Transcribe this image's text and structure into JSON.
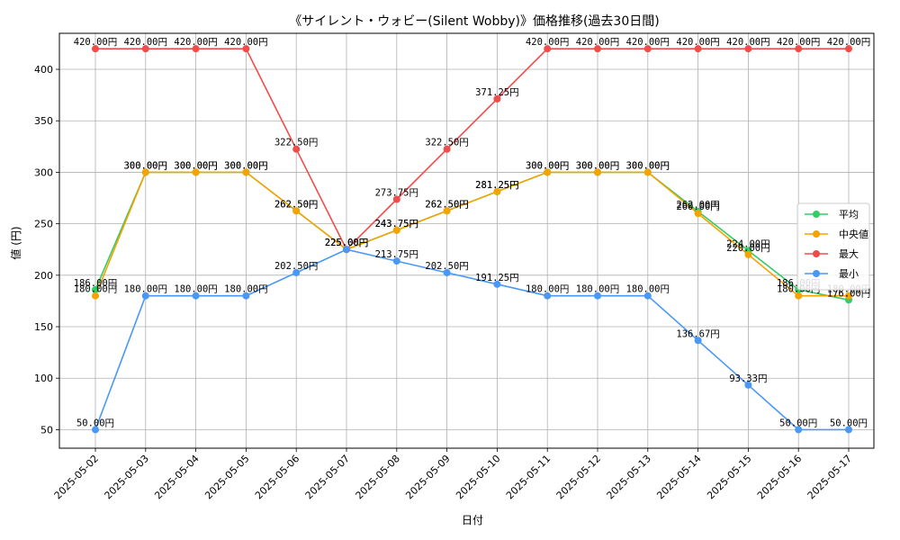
{
  "chart_data": {
    "type": "line",
    "title": "《サイレント・ウォビー(Silent Wobby)》価格推移(過去30日間)",
    "xlabel": "日付",
    "ylabel": "値 (円)",
    "value_suffix": "円",
    "ylim": [
      32,
      435
    ],
    "yticks": [
      50,
      100,
      150,
      200,
      250,
      300,
      350,
      400
    ],
    "grid": true,
    "legend_position": "center-right",
    "x": [
      "2025-05-02",
      "2025-05-03",
      "2025-05-04",
      "2025-05-05",
      "2025-05-06",
      "2025-05-07",
      "2025-05-08",
      "2025-05-09",
      "2025-05-10",
      "2025-05-11",
      "2025-05-12",
      "2025-05-13",
      "2025-05-14",
      "2025-05-15",
      "2025-05-16",
      "2025-05-17"
    ],
    "series": [
      {
        "name": "平均",
        "color": "#33cc66",
        "values": [
          186.0,
          300.0,
          300.0,
          300.0,
          262.5,
          225.0,
          243.75,
          262.5,
          281.25,
          300.0,
          300.0,
          300.0,
          262.0,
          224.0,
          186.0,
          176.0
        ]
      },
      {
        "name": "中央値",
        "color": "#f5a300",
        "values": [
          180.0,
          300.0,
          300.0,
          300.0,
          262.5,
          225.0,
          243.75,
          262.5,
          281.25,
          300.0,
          300.0,
          300.0,
          260.0,
          220.0,
          180.0,
          180.0
        ]
      },
      {
        "name": "最大",
        "color": "#f24b4b",
        "values": [
          420.0,
          420.0,
          420.0,
          420.0,
          322.5,
          225.0,
          273.75,
          322.5,
          371.25,
          420.0,
          420.0,
          420.0,
          420.0,
          420.0,
          420.0,
          420.0
        ]
      },
      {
        "name": "最小",
        "color": "#4a98f5",
        "values": [
          50.0,
          180.0,
          180.0,
          180.0,
          202.5,
          225.0,
          213.75,
          202.5,
          191.25,
          180.0,
          180.0,
          180.0,
          136.67,
          93.33,
          50.0,
          50.0
        ]
      }
    ]
  }
}
